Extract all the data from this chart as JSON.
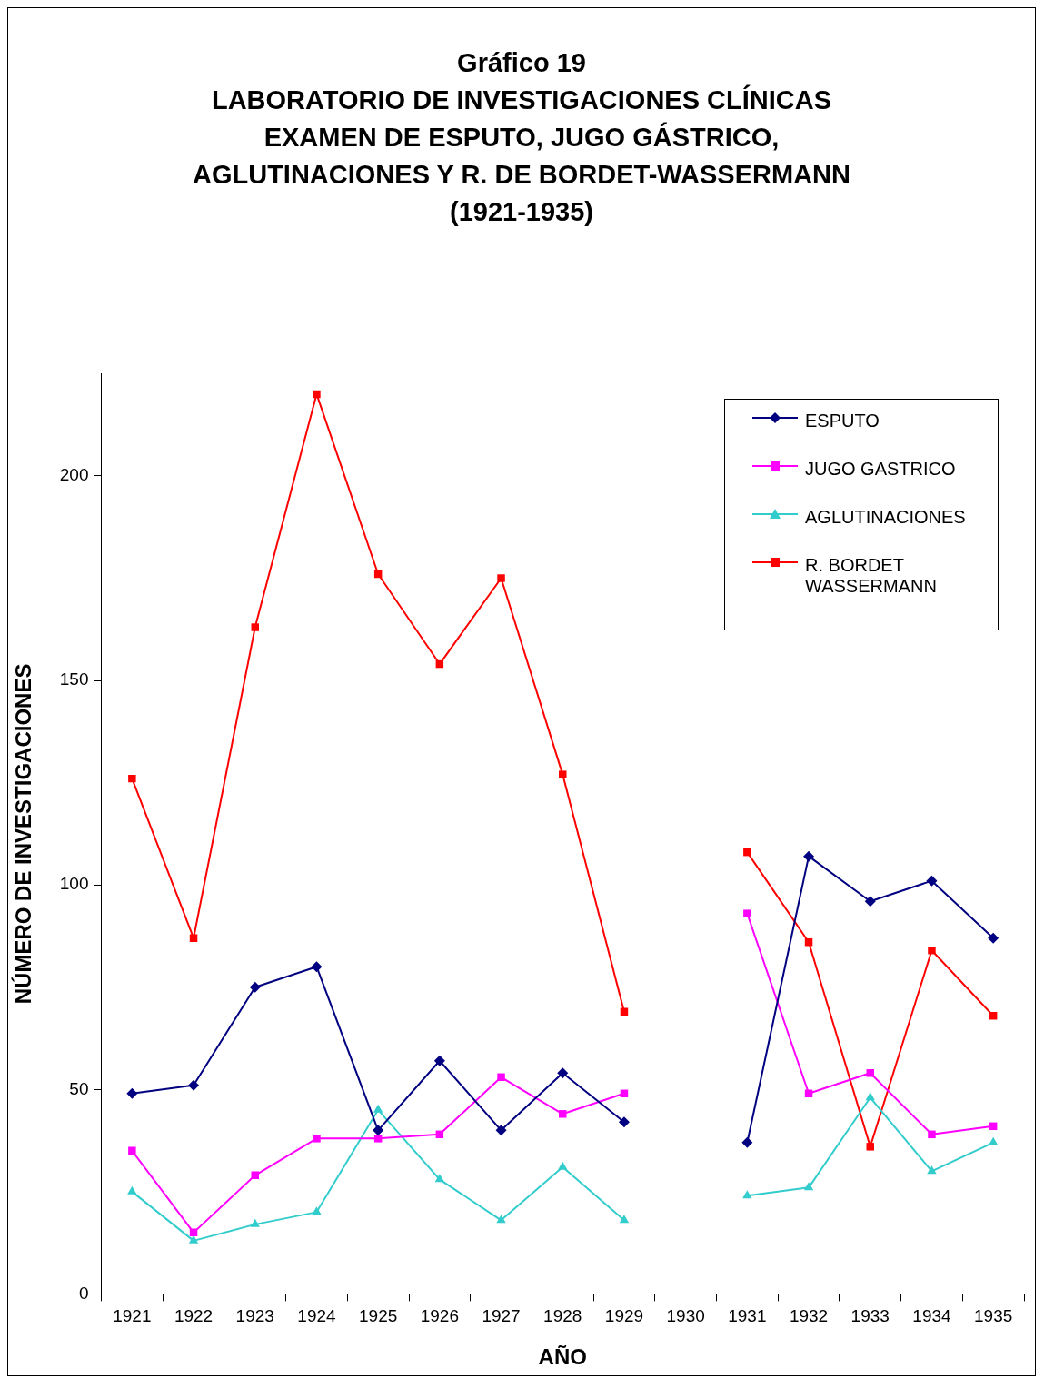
{
  "chart_data": {
    "type": "line",
    "title": "Gráfico 19\nLABORATORIO DE INVESTIGACIONES CLÍNICAS\nEXAMEN DE ESPUTO, JUGO GÁSTRICO,\nAGLUTINACIONES Y R. DE BORDET-WASSERMANN\n(1921-1935)",
    "xlabel": "AÑO",
    "ylabel": "NÚMERO DE INVESTIGACIONES",
    "categories": [
      "1921",
      "1922",
      "1923",
      "1924",
      "1925",
      "1926",
      "1927",
      "1928",
      "1929",
      "1930",
      "1931",
      "1932",
      "1933",
      "1934",
      "1935"
    ],
    "series": [
      {
        "name": "ESPUTO",
        "color": "#000080",
        "marker": "diamond",
        "values": [
          49,
          51,
          75,
          80,
          40,
          57,
          40,
          54,
          42,
          null,
          37,
          107,
          96,
          101,
          87
        ]
      },
      {
        "name": "JUGO GASTRICO",
        "color": "#ff00ff",
        "marker": "square",
        "values": [
          35,
          15,
          29,
          38,
          38,
          39,
          53,
          44,
          49,
          null,
          93,
          49,
          54,
          39,
          41
        ]
      },
      {
        "name": "AGLUTINACIONES",
        "color": "#33cccc",
        "marker": "triangle",
        "values": [
          25,
          13,
          17,
          20,
          45,
          28,
          18,
          31,
          18,
          null,
          24,
          26,
          48,
          30,
          37
        ]
      },
      {
        "name": "R. BORDET WASSERMANN",
        "color": "#ff0000",
        "marker": "square",
        "values": [
          126,
          87,
          163,
          220,
          176,
          154,
          175,
          127,
          69,
          null,
          108,
          86,
          36,
          84,
          68
        ]
      }
    ],
    "ylim": [
      0,
      225
    ],
    "yticks": [
      0,
      50,
      100,
      150,
      200
    ],
    "grid": false,
    "legend": "top right",
    "line_style": "solid"
  }
}
